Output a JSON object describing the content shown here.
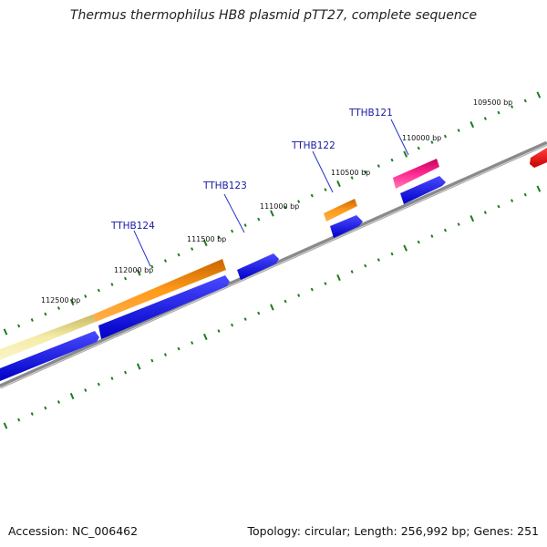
{
  "title": "Thermus thermophilus HB8 plasmid pTT27, complete sequence",
  "footer": {
    "accession": "Accession: NC_006462",
    "summary": "Topology: circular; Length: 256,992 bp; Genes: 251"
  },
  "ruler_labels": [
    "112500 bp",
    "112000 bp",
    "111500 bp",
    "111000 bp",
    "110500 bp",
    "110000 bp",
    "109500 bp"
  ],
  "gene_labels": [
    "TTHB124",
    "TTHB123",
    "TTHB122",
    "TTHB121"
  ],
  "colors": {
    "backbone": "#808080",
    "tick": "#1e7d1e",
    "label_line": "#2233cc",
    "cds_arrow": "#0000e6",
    "gene_orange": "#ff8c00",
    "gene_pale": "#f3eaa0",
    "gene_pink": "#ff1a8c",
    "gene_red": "#ee0000"
  }
}
